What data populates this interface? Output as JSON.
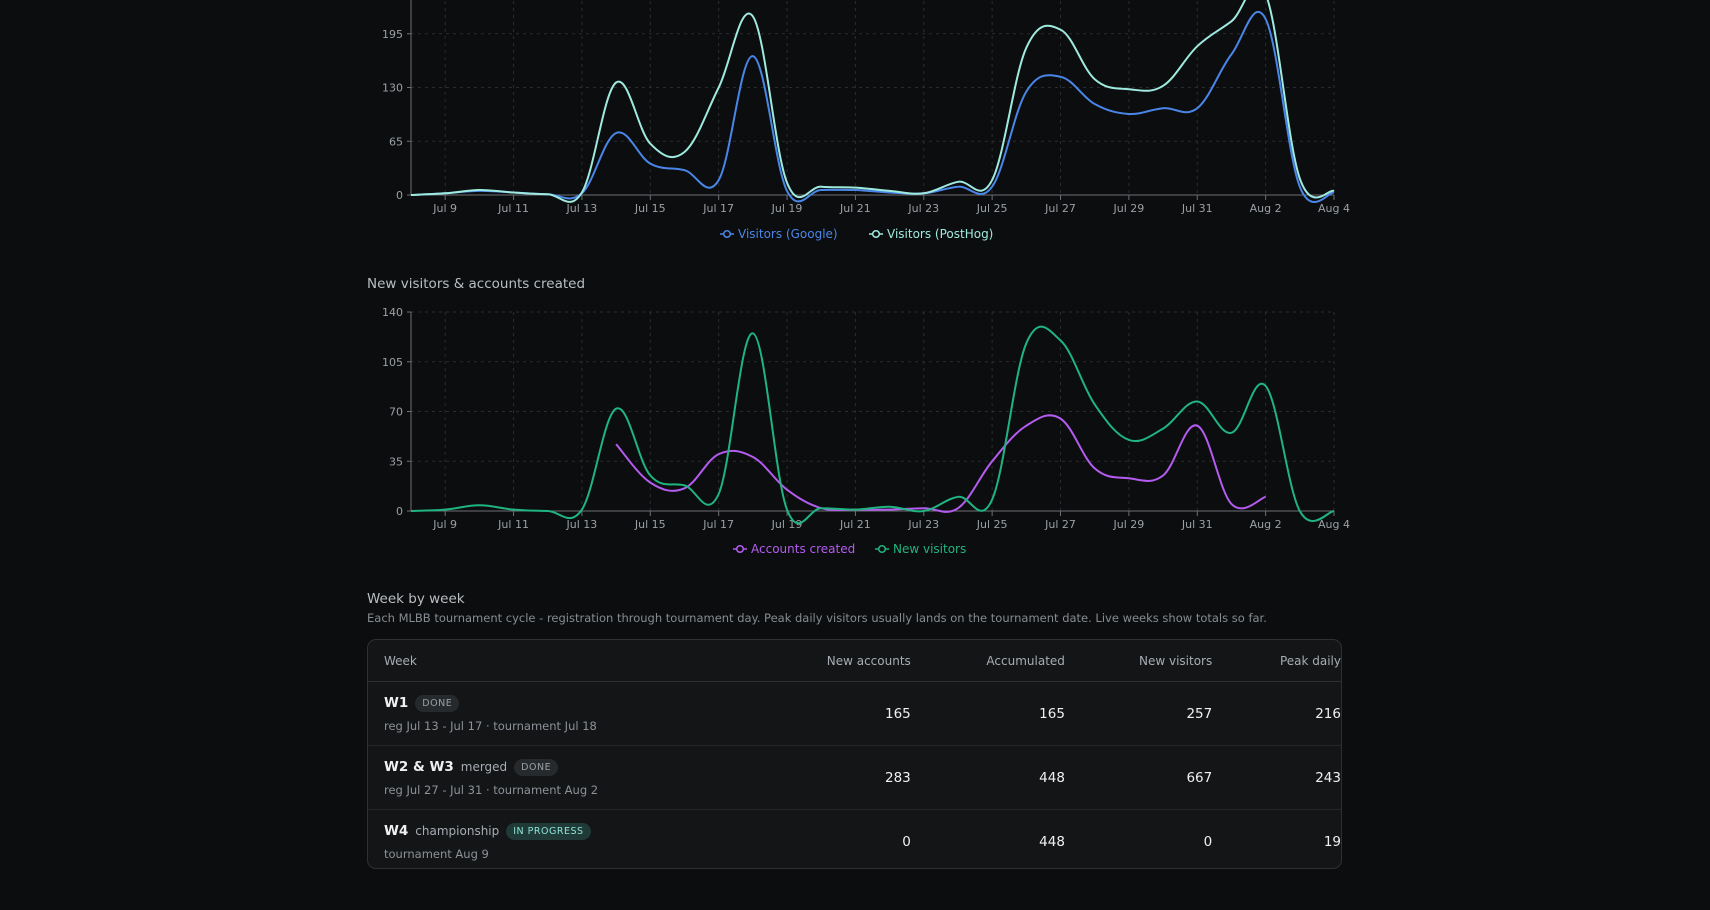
{
  "charts": {
    "visitors": {
      "title": "",
      "legend": [
        {
          "label": "Visitors (Google)",
          "color": "#4a86e8"
        },
        {
          "label": "Visitors (PostHog)",
          "color": "#9feadf"
        }
      ]
    },
    "new_vs_accounts": {
      "title": "New visitors & accounts created",
      "legend": [
        {
          "label": "Accounts created",
          "color": "#b45cf0"
        },
        {
          "label": "New visitors",
          "color": "#1fb480"
        }
      ]
    }
  },
  "chart_data": [
    {
      "type": "line",
      "title": "",
      "x": [
        "Jul 8",
        "Jul 9",
        "Jul 10",
        "Jul 11",
        "Jul 12",
        "Jul 13",
        "Jul 14",
        "Jul 15",
        "Jul 16",
        "Jul 17",
        "Jul 18",
        "Jul 19",
        "Jul 20",
        "Jul 21",
        "Jul 22",
        "Jul 23",
        "Jul 24",
        "Jul 25",
        "Jul 26",
        "Jul 27",
        "Jul 28",
        "Jul 29",
        "Jul 30",
        "Jul 31",
        "Aug 1",
        "Aug 2",
        "Aug 3",
        "Aug 4"
      ],
      "x_tick_labels": [
        "Jul 9",
        "Jul 11",
        "Jul 13",
        "Jul 15",
        "Jul 17",
        "Jul 19",
        "Jul 21",
        "Jul 23",
        "Jul 25",
        "Jul 27",
        "Jul 29",
        "Jul 31",
        "Aug 2",
        "Aug 4"
      ],
      "y_tick_labels": [
        "0",
        "65",
        "130",
        "195"
      ],
      "ylim": [
        0,
        260
      ],
      "grid": true,
      "legend_position": "bottom-center",
      "series": [
        {
          "name": "Visitors (Google)",
          "color": "#4a86e8",
          "values": [
            0,
            2,
            5,
            3,
            1,
            2,
            75,
            38,
            30,
            18,
            168,
            5,
            6,
            6,
            3,
            2,
            10,
            10,
            125,
            143,
            110,
            98,
            105,
            105,
            170,
            213,
            10,
            3
          ]
        },
        {
          "name": "Visitors (PostHog)",
          "color": "#9feadf",
          "values": [
            0,
            2,
            6,
            3,
            1,
            3,
            136,
            62,
            52,
            130,
            216,
            15,
            10,
            9,
            5,
            2,
            16,
            18,
            178,
            200,
            140,
            128,
            132,
            180,
            210,
            243,
            20,
            5
          ]
        }
      ]
    },
    {
      "type": "line",
      "title": "New visitors & accounts created",
      "x": [
        "Jul 8",
        "Jul 9",
        "Jul 10",
        "Jul 11",
        "Jul 12",
        "Jul 13",
        "Jul 14",
        "Jul 15",
        "Jul 16",
        "Jul 17",
        "Jul 18",
        "Jul 19",
        "Jul 20",
        "Jul 21",
        "Jul 22",
        "Jul 23",
        "Jul 24",
        "Jul 25",
        "Jul 26",
        "Jul 27",
        "Jul 28",
        "Jul 29",
        "Jul 30",
        "Jul 31",
        "Aug 1",
        "Aug 2",
        "Aug 3",
        "Aug 4"
      ],
      "x_tick_labels": [
        "Jul 9",
        "Jul 11",
        "Jul 13",
        "Jul 15",
        "Jul 17",
        "Jul 19",
        "Jul 21",
        "Jul 23",
        "Jul 25",
        "Jul 27",
        "Jul 29",
        "Jul 31",
        "Aug 2",
        "Aug 4"
      ],
      "y_tick_labels": [
        "0",
        "35",
        "70",
        "105",
        "140"
      ],
      "ylim": [
        0,
        140
      ],
      "grid": true,
      "legend_position": "bottom-center",
      "series": [
        {
          "name": "Accounts created",
          "color": "#b45cf0",
          "values": [
            null,
            null,
            null,
            null,
            null,
            null,
            47,
            20,
            16,
            40,
            38,
            15,
            2,
            1,
            1,
            2,
            2,
            35,
            60,
            65,
            30,
            23,
            25,
            60,
            5,
            10,
            null,
            null
          ]
        },
        {
          "name": "New visitors",
          "color": "#1fb480",
          "values": [
            0,
            1,
            4,
            1,
            0,
            1,
            72,
            25,
            18,
            12,
            125,
            1,
            2,
            1,
            3,
            0,
            10,
            8,
            118,
            120,
            75,
            50,
            58,
            77,
            55,
            88,
            0,
            0
          ]
        }
      ]
    }
  ],
  "week_section": {
    "title": "Week by week",
    "subtitle": "Each MLBB tournament cycle - registration through tournament day. Peak daily visitors usually lands on the tournament date. Live weeks show totals so far."
  },
  "table": {
    "headers": [
      "Week",
      "New accounts",
      "Accumulated",
      "New visitors",
      "Peak daily"
    ],
    "rows": [
      {
        "name": "W1",
        "note": "",
        "status": "DONE",
        "status_type": "done",
        "detail": "reg Jul 13 - Jul 17 · tournament Jul 18",
        "new_accounts": "165",
        "accumulated": "165",
        "new_visitors": "257",
        "peak_daily": "216"
      },
      {
        "name": "W2 & W3",
        "note": "merged",
        "status": "DONE",
        "status_type": "done",
        "detail": "reg Jul 27 - Jul 31 · tournament Aug 2",
        "new_accounts": "283",
        "accumulated": "448",
        "new_visitors": "667",
        "peak_daily": "243"
      },
      {
        "name": "W4",
        "note": "championship",
        "status": "IN PROGRESS",
        "status_type": "progress",
        "detail": "tournament Aug 9",
        "new_accounts": "0",
        "accumulated": "448",
        "new_visitors": "0",
        "peak_daily": "19"
      }
    ]
  }
}
